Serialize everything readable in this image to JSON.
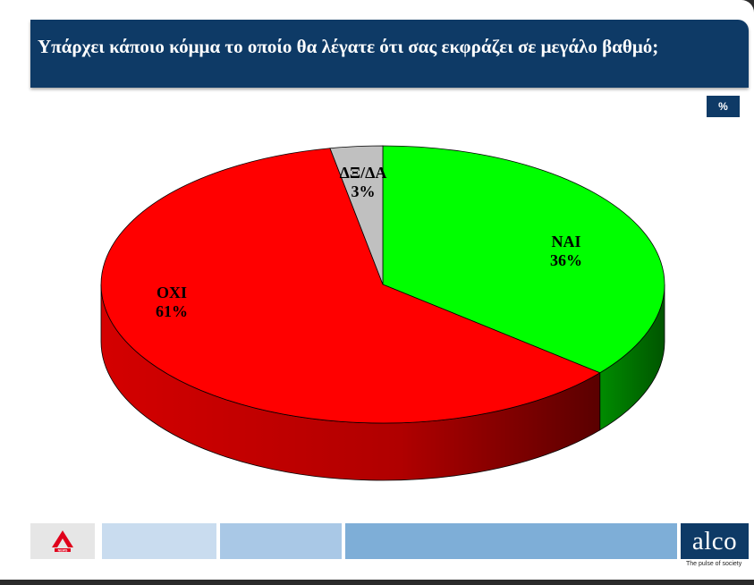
{
  "header": {
    "title": "Υπάρχει κάποιο κόμμα το οποίο  θα λέγατε ότι σας εκφράζει σε μεγάλο βαθμό;"
  },
  "unit_label": "%",
  "chart_data": {
    "type": "pie",
    "title": "Υπάρχει κάποιο κόμμα το οποίο  θα λέγατε ότι σας εκφράζει σε μεγάλο βαθμό;",
    "slices": [
      {
        "label": "ΝΑΙ",
        "value": 36,
        "value_label": "36%",
        "color": "#00ff00",
        "side_color": "#007a00"
      },
      {
        "label": "ΟΧΙ",
        "value": 61,
        "value_label": "61%",
        "color": "#ff0000",
        "side_color": "#b30000"
      },
      {
        "label": "ΔΞ/ΔΑ",
        "value": 3,
        "value_label": "3%",
        "color": "#c0c0c0",
        "side_color": "#808080"
      }
    ],
    "legend": "none",
    "three_d": true
  },
  "footer": {
    "logo_text": "NEWS",
    "brand": "alco",
    "tagline": "The pulse of society",
    "colors": {
      "brand_bg": "#0e3a66",
      "block1": "#c9dcef",
      "block2": "#a9c8e6",
      "block3": "#7eaed7"
    }
  }
}
